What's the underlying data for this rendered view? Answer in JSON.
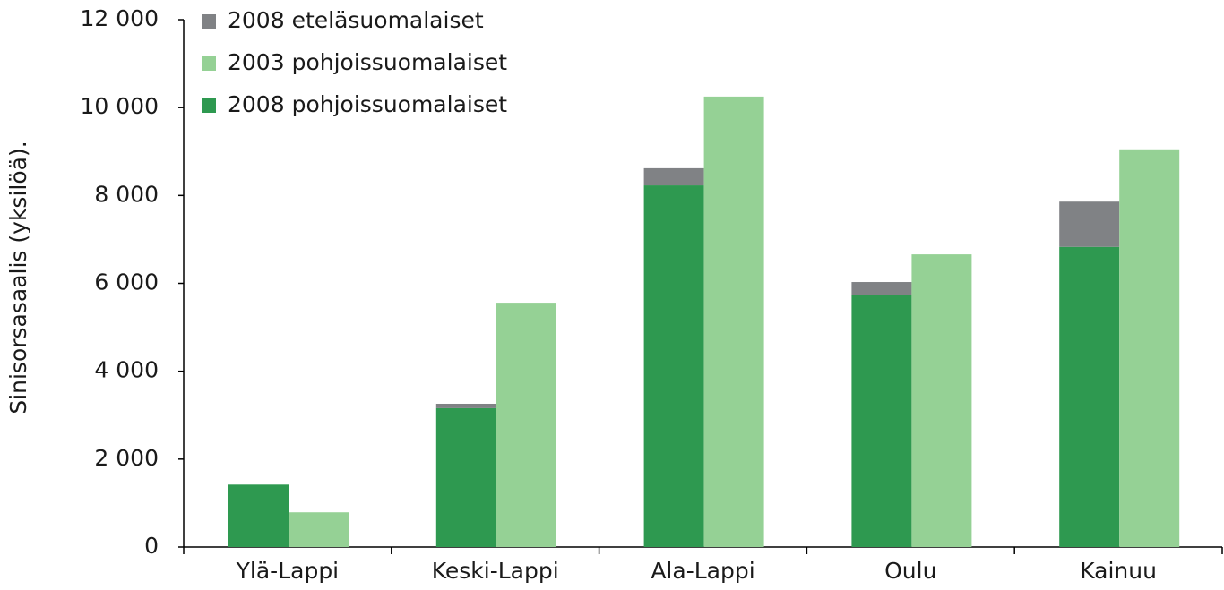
{
  "chart_data": {
    "type": "bar",
    "y_label": "Sinisorsasaalis (yksilöä).",
    "categories": [
      "Ylä-Lappi",
      "Keski-Lappi",
      "Ala-Lappi",
      "Oulu",
      "Kainuu"
    ],
    "series": [
      {
        "name": "2008 eteläsuomalaiset",
        "color": "#808285",
        "values": [
          0,
          100,
          390,
          300,
          1030
        ]
      },
      {
        "name": "2003 pohjoissuomalaiset",
        "color": "#95d195",
        "values": [
          790,
          5560,
          10250,
          6660,
          9050
        ]
      },
      {
        "name": "2008 pohjoissuomalaiset",
        "color": "#2e9950",
        "values": [
          1420,
          3160,
          8230,
          5730,
          6830
        ]
      }
    ],
    "ylim": [
      0,
      12000
    ],
    "yticks": [
      0,
      {
        "value": 2000,
        "label": "2 000"
      },
      {
        "value": 4000,
        "label": "4 000"
      },
      {
        "value": 6000,
        "label": "6 000"
      },
      {
        "value": 8000,
        "label": "8 000"
      },
      {
        "value": 10000,
        "label": "10 000"
      },
      {
        "value": 12000,
        "label": "12 000"
      }
    ],
    "legend": "top-left"
  }
}
